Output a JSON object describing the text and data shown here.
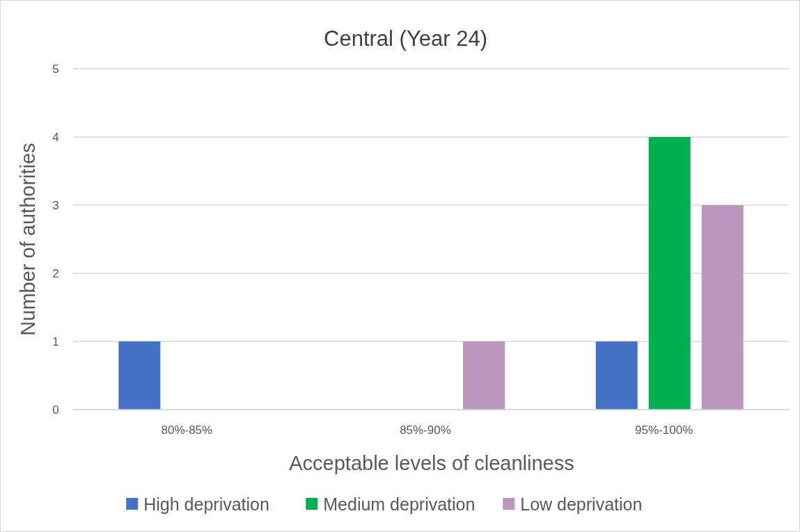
{
  "chart_data": {
    "type": "bar",
    "title": "Central (Year 24)",
    "xlabel": "Acceptable levels of cleanliness",
    "ylabel": "Number of authorities",
    "categories": [
      "80%-85%",
      "85%-90%",
      "95%-100%"
    ],
    "series": [
      {
        "name": "High deprivation",
        "color": "#4472c4",
        "values": [
          1,
          0,
          1
        ]
      },
      {
        "name": "Medium deprivation",
        "color": "#00b050",
        "values": [
          0,
          0,
          4
        ]
      },
      {
        "name": "Low deprivation",
        "color": "#bc96bc",
        "values": [
          0,
          1,
          3
        ]
      }
    ],
    "ylim": [
      0,
      5
    ],
    "yticks": [
      0,
      1,
      2,
      3,
      4,
      5
    ],
    "grid": "y",
    "legend": "bottom"
  }
}
